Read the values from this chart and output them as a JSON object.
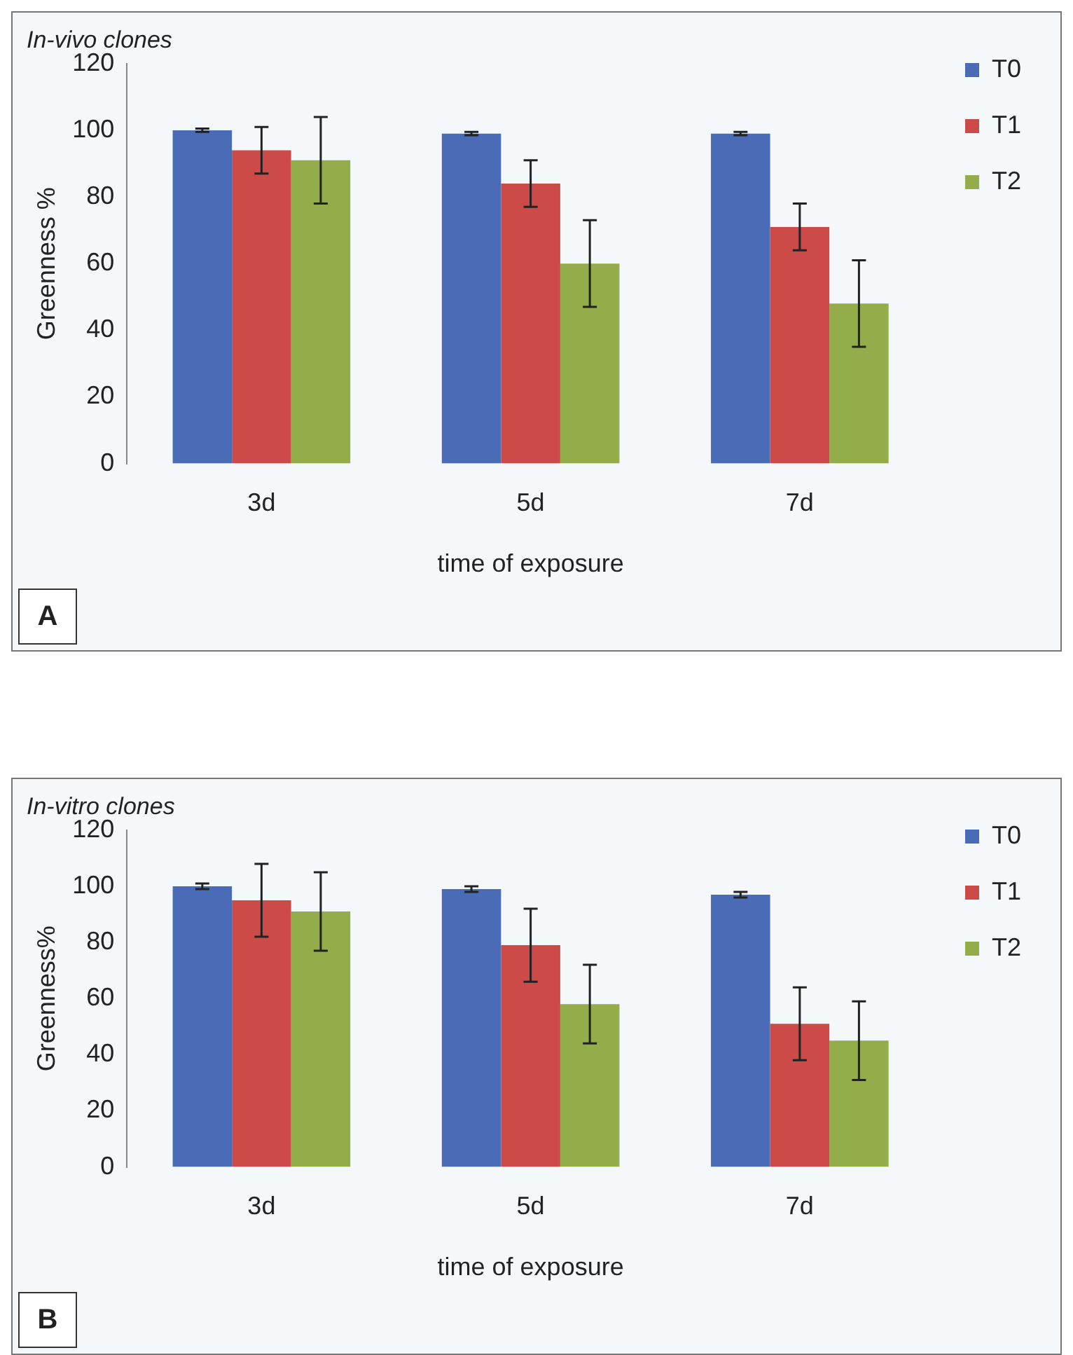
{
  "chart_data": [
    {
      "type": "bar",
      "title": "In-vivo clones",
      "xlabel": "time of exposure",
      "ylabel": "Greenness %",
      "annotations": [
        "A"
      ],
      "categories": [
        "3d",
        "5d",
        "7d"
      ],
      "series": [
        {
          "name": "T0",
          "color": "#4a6bb5",
          "values": [
            100,
            99,
            99
          ],
          "errors": [
            0.5,
            0.5,
            0.5
          ]
        },
        {
          "name": "T1",
          "color": "#cc4a47",
          "values": [
            94,
            84,
            71
          ],
          "errors": [
            7,
            7,
            7
          ]
        },
        {
          "name": "T2",
          "color": "#93ad4a",
          "values": [
            91,
            60,
            48
          ],
          "errors": [
            13,
            13,
            13
          ]
        }
      ],
      "ylim": [
        0,
        120
      ],
      "yticks": [
        0,
        20,
        40,
        60,
        80,
        100,
        120
      ],
      "grid": false,
      "legend": "right"
    },
    {
      "type": "bar",
      "title": "In-vitro clones",
      "xlabel": "time of exposure",
      "ylabel": "Greenness%",
      "annotations": [
        "B"
      ],
      "categories": [
        "3d",
        "5d",
        "7d"
      ],
      "series": [
        {
          "name": "T0",
          "color": "#4a6bb5",
          "values": [
            100,
            99,
            97
          ],
          "errors": [
            1,
            1,
            1
          ]
        },
        {
          "name": "T1",
          "color": "#cc4a47",
          "values": [
            95,
            79,
            51
          ],
          "errors": [
            13,
            13,
            13
          ]
        },
        {
          "name": "T2",
          "color": "#93ad4a",
          "values": [
            91,
            58,
            45
          ],
          "errors": [
            14,
            14,
            14
          ]
        }
      ],
      "ylim": [
        0,
        120
      ],
      "yticks": [
        0,
        20,
        40,
        60,
        80,
        100,
        120
      ],
      "grid": false,
      "legend": "right"
    }
  ]
}
